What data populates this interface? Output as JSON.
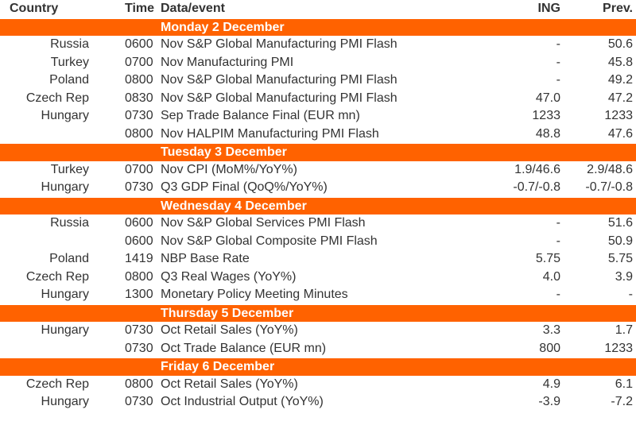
{
  "header": {
    "country": "Country",
    "time": "Time",
    "event": "Data/event",
    "ing": "ING",
    "prev": "Prev."
  },
  "sections": [
    {
      "day": "Monday 2 December",
      "rows": [
        {
          "country": "Russia",
          "time": "0600",
          "event": "Nov S&P Global Manufacturing PMI Flash",
          "ing": "-",
          "prev": "50.6"
        },
        {
          "country": "Turkey",
          "time": "0700",
          "event": "Nov Manufacturing PMI",
          "ing": "-",
          "prev": "45.8"
        },
        {
          "country": "Poland",
          "time": "0800",
          "event": "Nov S&P Global Manufacturing PMI Flash",
          "ing": "-",
          "prev": "49.2"
        },
        {
          "country": "Czech Rep",
          "time": "0830",
          "event": "Nov S&P Global Manufacturing PMI Flash",
          "ing": "47.0",
          "prev": "47.2"
        },
        {
          "country": "Hungary",
          "time": "0730",
          "event": "Sep Trade Balance Final (EUR mn)",
          "ing": "1233",
          "prev": "1233"
        },
        {
          "country": null,
          "time": "0800",
          "event": "Nov HALPIM Manufacturing PMI Flash",
          "ing": "48.8",
          "prev": "47.6"
        }
      ]
    },
    {
      "day": "Tuesday 3 December",
      "rows": [
        {
          "country": "Turkey",
          "time": "0700",
          "event": "Nov CPI (MoM%/YoY%)",
          "ing": "1.9/46.6",
          "prev": "2.9/48.6"
        },
        {
          "country": "Hungary",
          "time": "0730",
          "event": "Q3 GDP Final (QoQ%/YoY%)",
          "ing": "-0.7/-0.8",
          "prev": "-0.7/-0.8"
        }
      ]
    },
    {
      "day": "Wednesday 4 December",
      "rows": [
        {
          "country": "Russia",
          "time": "0600",
          "event": "Nov S&P Global Services PMI Flash",
          "ing": "-",
          "prev": "51.6"
        },
        {
          "country": null,
          "time": "0600",
          "event": "Nov S&P Global Composite PMI Flash",
          "ing": "-",
          "prev": "50.9"
        },
        {
          "country": "Poland",
          "time": "1419",
          "event": "NBP Base Rate",
          "ing": "5.75",
          "prev": "5.75"
        },
        {
          "country": "Czech Rep",
          "time": "0800",
          "event": "Q3 Real Wages (YoY%)",
          "ing": "4.0",
          "prev": "3.9"
        },
        {
          "country": "Hungary",
          "time": "1300",
          "event": "Monetary Policy Meeting Minutes",
          "ing": "-",
          "prev": "-"
        }
      ]
    },
    {
      "day": "Thursday 5 December",
      "rows": [
        {
          "country": "Hungary",
          "time": "0730",
          "event": "Oct Retail Sales (YoY%)",
          "ing": "3.3",
          "prev": "1.7"
        },
        {
          "country": null,
          "time": "0730",
          "event": "Oct Trade Balance (EUR mn)",
          "ing": "800",
          "prev": "1233"
        }
      ]
    },
    {
      "day": "Friday 6 December",
      "rows": [
        {
          "country": "Czech Rep",
          "time": "0800",
          "event": "Oct Retail Sales (YoY%)",
          "ing": "4.9",
          "prev": "6.1"
        },
        {
          "country": "Hungary",
          "time": "0730",
          "event": "Oct Industrial Output (YoY%)",
          "ing": "-3.9",
          "prev": "-7.2"
        }
      ]
    }
  ]
}
